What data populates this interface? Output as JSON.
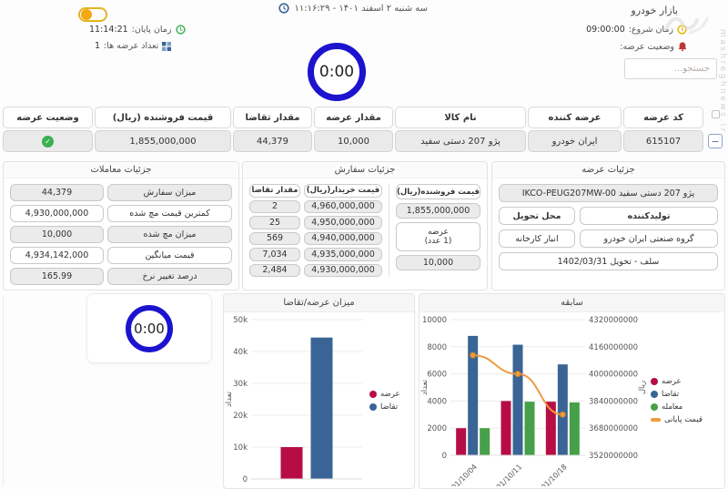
{
  "colors": {
    "timer_ring": "#1c13cf",
    "supply_red": "#b70d45",
    "demand_blue": "#3a6495",
    "trade_green": "#46a049",
    "closing_orange": "#ef9b3f",
    "check_green": "#3bb054",
    "toggle_gold": "#e6b322"
  },
  "header": {
    "market_title": "بازار خودرو",
    "datetime": "سه شنبه ۲ اسفند ۱۴۰۱ - ۱۱:۱۶:۲۹",
    "start_time_label": "زمان شروع:",
    "start_time": "09:00:00",
    "supply_status_label": "وضعیت عرضه:",
    "end_time_label": "زمان پایان:",
    "end_time": "11:14:21",
    "supply_count_label": "تعداد عرضه ها:",
    "supply_count": "1",
    "timer": "0:00",
    "search_placeholder": "جستجو...",
    "watermark": "mashreghnews.ir"
  },
  "table": {
    "columns": [
      "کد عرضه",
      "عرضه کننده",
      "نام کالا",
      "مقدار عرضه",
      "مقدار تقاضا",
      "قیمت فروشنده (ریال)",
      "وضعیت عرضه"
    ],
    "collapse_glyph": "−",
    "row": {
      "code": "615107",
      "supplier": "ایران خودرو",
      "product": "پژو 207 دستی سفید",
      "supply_qty": "10,000",
      "demand_qty": "44,379",
      "seller_price": "1,855,000,000"
    }
  },
  "trade_details": {
    "title": "جزئیات معاملات",
    "rows": [
      {
        "label": "میزان سفارش",
        "value": "44,379"
      },
      {
        "label": "کمترین قیمت مچ شده",
        "value": "4,930,000,000"
      },
      {
        "label": "میزان مچ شده",
        "value": "10,000"
      },
      {
        "label": "قیمت میانگین",
        "value": "4,934,142,000"
      },
      {
        "label": "درصد تغییر نرخ",
        "value": "165.99"
      }
    ]
  },
  "order_details": {
    "title": "جزئیات سفارش",
    "seller_price_header": "قیمت فروشنده(ریال)",
    "seller_price": "1,855,000,000",
    "supply_box_line1": "عرضه",
    "supply_box_line2": "(1 عدد)",
    "supply_qty": "10,000",
    "buyer_price_header": "قیمت خریدار(ریال)",
    "demand_qty_header": "مقدار تقاضا",
    "bids": [
      {
        "qty": "2",
        "price": "4,960,000,000"
      },
      {
        "qty": "25",
        "price": "4,950,000,000"
      },
      {
        "qty": "569",
        "price": "4,940,000,000"
      },
      {
        "qty": "7,034",
        "price": "4,935,000,000"
      },
      {
        "qty": "2,484",
        "price": "4,930,000,000"
      }
    ]
  },
  "supply_details": {
    "title": "جزئیات عرضه",
    "product_full": "پژو 207 دستی سفید IKCO-PEUG207MW-00",
    "producer_label": "تولیدکننده",
    "delivery_label": "محل تحویل",
    "producer": "گروه صنعتی ایران خودرو",
    "delivery": "انبار کارخانه",
    "contract": "سلف - تحویل 1402/03/31"
  },
  "timer2": "0:00",
  "chart_data": [
    {
      "id": "supply-demand",
      "type": "bar",
      "title": "میزان عرضه/تقاضا",
      "ylabel": "تعداد",
      "ylim": [
        0,
        50000
      ],
      "ytick_step": 10000,
      "ytick_labels": [
        "0",
        "10k",
        "20k",
        "30k",
        "40k",
        "50k"
      ],
      "categories": [
        ""
      ],
      "series": [
        {
          "name": "عرضه",
          "color": "#b70d45",
          "values": [
            10000
          ]
        },
        {
          "name": "تقاضا",
          "color": "#3a6495",
          "values": [
            44379
          ]
        }
      ],
      "grid": true,
      "legend_position": "right"
    },
    {
      "id": "history",
      "type": "bar+line",
      "title": "سابقه",
      "ylabel": "تعداد",
      "y2label": "ریال",
      "ylim": [
        0,
        10000
      ],
      "ytick_step": 2000,
      "y2lim": [
        3520000000,
        4320000000
      ],
      "y2tick_step": 160000000,
      "categories": [
        "1401/10/04",
        "1401/10/11",
        "1401/10/18"
      ],
      "series": [
        {
          "name": "عرضه",
          "color": "#b70d45",
          "values": [
            2000,
            4000,
            3950
          ]
        },
        {
          "name": "تقاضا",
          "color": "#3a6495",
          "values": [
            8800,
            8150,
            6700
          ]
        },
        {
          "name": "معامله",
          "color": "#46a049",
          "values": [
            2000,
            3950,
            3900
          ]
        }
      ],
      "line_series": {
        "name": "قیمت پایانی",
        "color": "#ef9b3f",
        "axis": "y2",
        "values": [
          4110000000,
          4000000000,
          3760000000
        ]
      },
      "grid": true,
      "legend_position": "right"
    }
  ]
}
